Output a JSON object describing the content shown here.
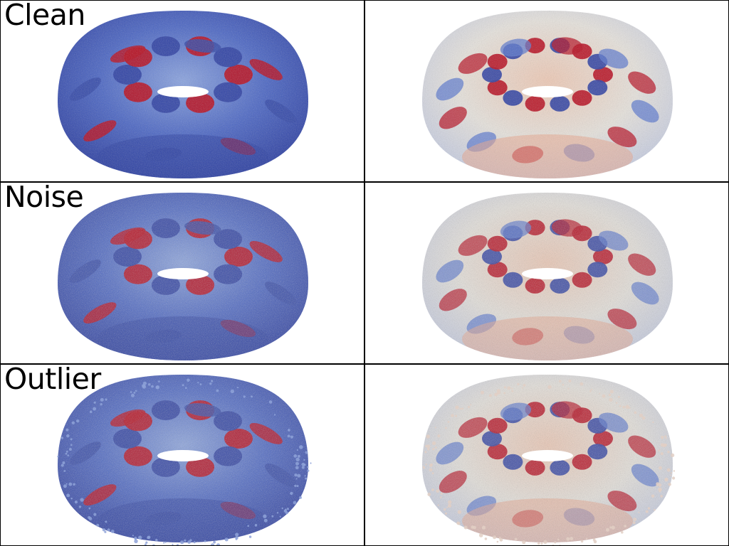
{
  "rows": [
    {
      "label": "Clean",
      "variant": "clean"
    },
    {
      "label": "Noise",
      "variant": "noise"
    },
    {
      "label": "Outlier",
      "variant": "outlier"
    }
  ],
  "columns": [
    {
      "pattern": "low-frequency"
    },
    {
      "pattern": "high-frequency"
    }
  ],
  "colormap": {
    "low": "#2c3fa3",
    "mid_low": "#8aa3df",
    "mid": "#e6e2dc",
    "mid_high": "#eaa58c",
    "high": "#b70d20"
  },
  "grid_lines": true
}
